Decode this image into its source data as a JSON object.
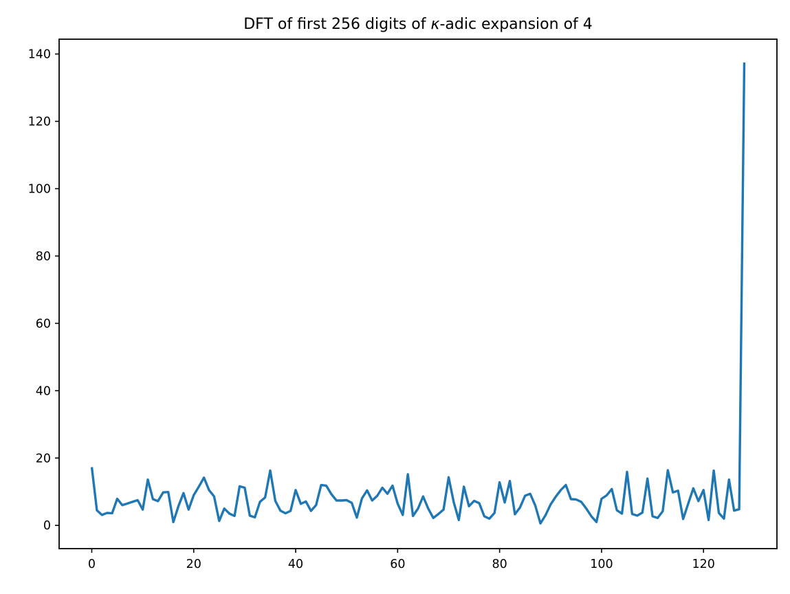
{
  "chart_data": {
    "type": "line",
    "title": "DFT of first 256 digits of κ-adic expansion of 4",
    "title_parts": {
      "prefix": "DFT of first 256 digits of ",
      "kappa": "κ",
      "suffix": "-adic expansion of 4"
    },
    "xlabel": "",
    "ylabel": "",
    "x_start": 0,
    "x_step": 1,
    "values": [
      17.3,
      4.5,
      3.1,
      3.7,
      3.6,
      7.9,
      6.0,
      6.5,
      7.0,
      7.5,
      4.7,
      13.6,
      7.8,
      7.2,
      9.8,
      9.9,
      1.0,
      5.7,
      9.6,
      4.7,
      9.0,
      11.5,
      14.2,
      10.5,
      8.6,
      1.3,
      5.0,
      3.5,
      2.8,
      11.6,
      11.2,
      2.9,
      2.4,
      7.0,
      8.3,
      16.3,
      7.3,
      4.4,
      3.6,
      4.3,
      10.5,
      6.4,
      7.1,
      4.3,
      6.0,
      12.0,
      11.8,
      9.3,
      7.4,
      7.4,
      7.5,
      6.7,
      2.3,
      8.0,
      10.4,
      7.4,
      8.8,
      11.2,
      9.4,
      11.8,
      6.5,
      3.1,
      15.2,
      2.8,
      5.0,
      8.6,
      5.0,
      2.2,
      3.4,
      4.7,
      14.3,
      6.9,
      1.6,
      11.5,
      5.7,
      7.3,
      6.6,
      2.7,
      2.0,
      3.7,
      12.8,
      6.8,
      13.2,
      3.3,
      5.3,
      8.8,
      9.4,
      5.9,
      0.6,
      3.0,
      6.2,
      8.5,
      10.5,
      12.0,
      7.8,
      7.7,
      7.0,
      5.0,
      2.7,
      1.0,
      7.9,
      8.9,
      10.8,
      4.5,
      3.5,
      15.9,
      3.4,
      2.9,
      3.8,
      13.9,
      2.7,
      2.2,
      4.2,
      16.4,
      9.8,
      10.3,
      1.9,
      6.5,
      11.0,
      7.2,
      10.5,
      1.6,
      16.3,
      3.7,
      2.0,
      13.6,
      4.4,
      4.8,
      137.5
    ],
    "x_ticks": [
      0,
      20,
      40,
      60,
      80,
      100,
      120
    ],
    "y_ticks": [
      0,
      20,
      40,
      60,
      80,
      100,
      120,
      140
    ],
    "xlim": [
      -6.4,
      134.4
    ],
    "ylim": [
      -6.9,
      144.4
    ],
    "grid": false,
    "legend": false,
    "line_color": "#1f77b4",
    "spine_color": "#000000",
    "background_color": "#ffffff"
  }
}
